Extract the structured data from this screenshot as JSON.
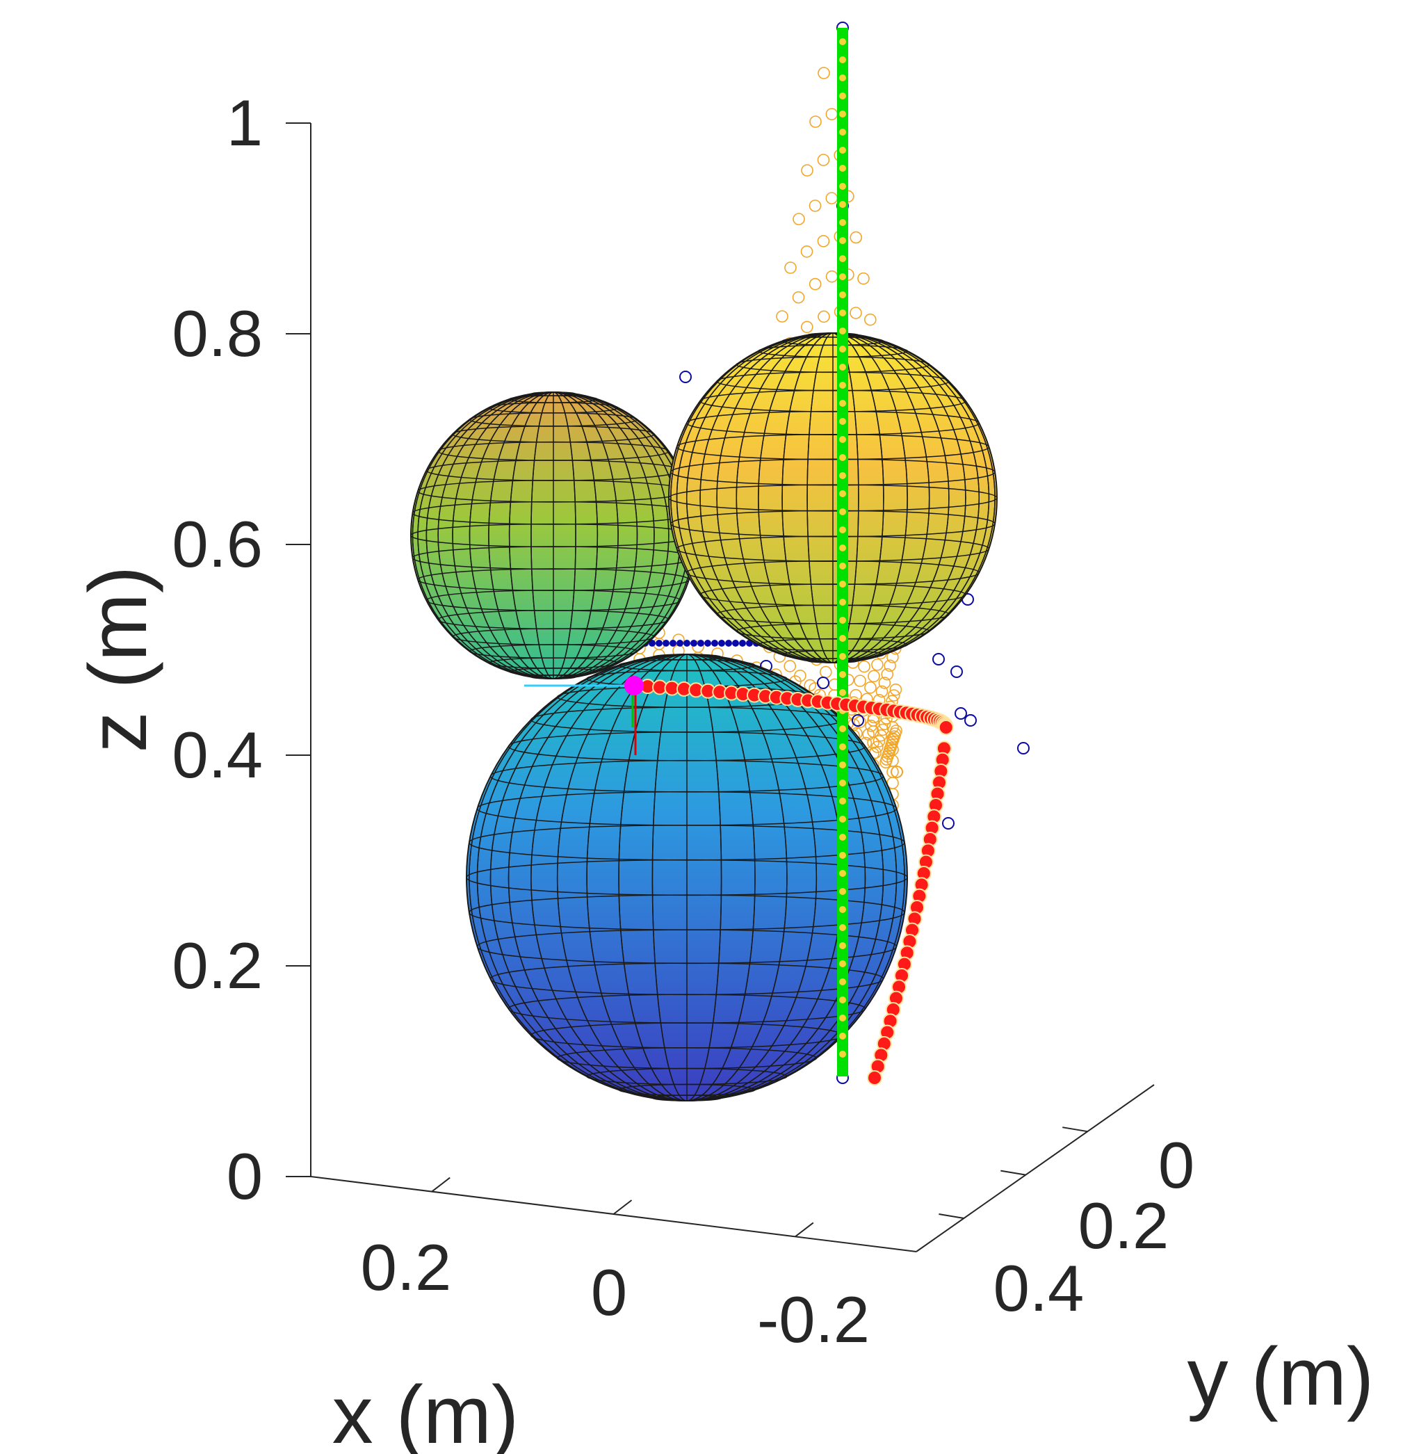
{
  "chart_data": {
    "type": "scatter",
    "projection": "3d",
    "title": "",
    "xlabel": "x (m)",
    "ylabel": "y (m)",
    "zlabel": "z (m)",
    "xlim": [
      -0.3,
      0.3
    ],
    "ylim": [
      -0.1,
      0.5
    ],
    "zlim": [
      0,
      1
    ],
    "x_ticks": [
      "0.2",
      "0",
      "-0.2"
    ],
    "y_ticks": [
      "0",
      "0.2",
      "0.4"
    ],
    "z_ticks": [
      "0",
      "0.2",
      "0.4",
      "0.6",
      "0.8",
      "1"
    ],
    "z_tick_values": [
      0,
      0.2,
      0.4,
      0.6,
      0.8,
      1
    ],
    "grid": false,
    "colormap": "parula",
    "spheres": [
      {
        "name": "bottom sphere",
        "center_z": 0.28,
        "radius": 0.2,
        "color_top": "#1fb2c6",
        "color_bottom": "#3b3ec0"
      },
      {
        "name": "upper-left sphere",
        "center_z": 0.61,
        "radius": 0.13,
        "color_top": "#e2a54a",
        "color_bottom": "#3fbf87"
      },
      {
        "name": "upper-right sphere",
        "center_z": 0.66,
        "radius": 0.155,
        "color_top": "#f5e33a",
        "color_bottom": "#b9cb38"
      }
    ],
    "series": [
      {
        "color": "#00e000",
        "marker": "line",
        "values_z": [
          0.1,
          1.08
        ]
      },
      {
        "color": "#ff1a1a",
        "marker": "filled-circle"
      },
      {
        "color": "#f2a628",
        "marker": "open-circle"
      },
      {
        "color": "#0a0aa8",
        "marker": "open-circle"
      },
      {
        "color": "#ff00ff",
        "marker": "filled-circle"
      }
    ]
  }
}
